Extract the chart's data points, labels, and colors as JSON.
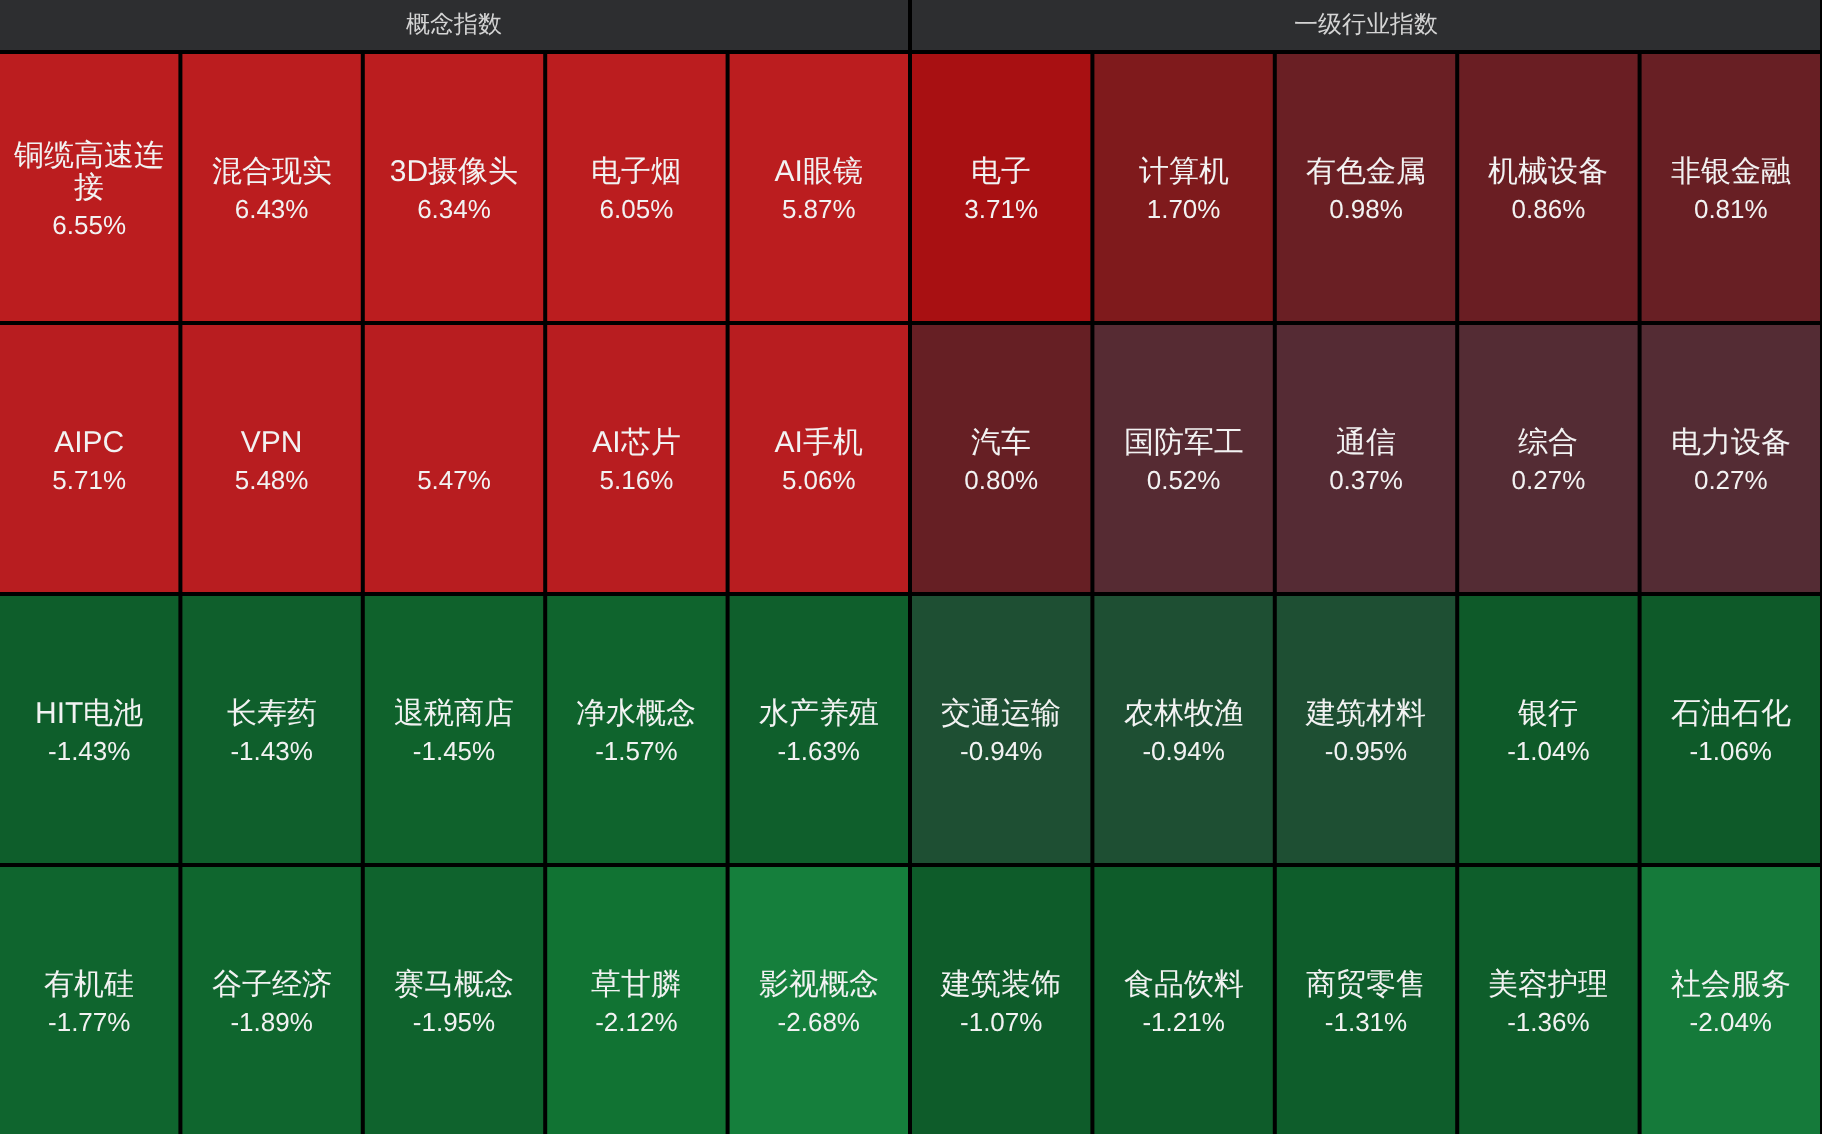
{
  "chart_data": [
    {
      "type": "other",
      "title": "概念指数",
      "categories": [
        "铜缆高速连接",
        "混合现实",
        "3D摄像头",
        "电子烟",
        "AI眼镜",
        "AIPC",
        "VPN",
        null,
        "AI芯片",
        "AI手机",
        "HIT电池",
        "长寿药",
        "退税商店",
        "净水概念",
        "水产养殖",
        "有机硅",
        "谷子经济",
        "赛马概念",
        "草甘膦",
        "影视概念"
      ],
      "values": [
        6.55,
        6.43,
        6.34,
        6.05,
        5.87,
        5.71,
        5.48,
        5.47,
        5.16,
        5.06,
        -1.43,
        -1.43,
        -1.45,
        -1.57,
        -1.63,
        -1.77,
        -1.89,
        -1.95,
        -2.12,
        -2.68
      ],
      "value_labels": [
        "6.55%",
        "6.43%",
        "6.34%",
        "6.05%",
        "5.87%",
        "5.71%",
        "5.48%",
        "5.47%",
        "5.16%",
        "5.06%",
        "-1.43%",
        "-1.43%",
        "-1.45%",
        "-1.57%",
        "-1.63%",
        "-1.77%",
        "-1.89%",
        "-1.95%",
        "-2.12%",
        "-2.68%"
      ],
      "colors": [
        "#bb1d1f",
        "#bb1d1f",
        "#bb1d1f",
        "#bb1d1f",
        "#bb1d1f",
        "#b81d20",
        "#b81d20",
        "#b81d20",
        "#b81d20",
        "#b81d20",
        "#0e5e2b",
        "#0f5f2c",
        "#0f622c",
        "#0f642d",
        "#0f5f2c",
        "#0f652e",
        "#0f662e",
        "#0f632d",
        "#117333",
        "#157f3c"
      ]
    },
    {
      "type": "other",
      "title": "一级行业指数",
      "categories": [
        "电子",
        "计算机",
        "有色金属",
        "机械设备",
        "非银金融",
        "汽车",
        "国防军工",
        "通信",
        "综合",
        "电力设备",
        "交通运输",
        "农林牧渔",
        "建筑材料",
        "银行",
        "石油石化",
        "建筑装饰",
        "食品饮料",
        "商贸零售",
        "美容护理",
        "社会服务"
      ],
      "values": [
        3.71,
        1.7,
        0.98,
        0.86,
        0.81,
        0.8,
        0.52,
        0.37,
        0.27,
        0.27,
        -0.94,
        -0.94,
        -0.95,
        -1.04,
        -1.06,
        -1.07,
        -1.21,
        -1.31,
        -1.36,
        -2.04
      ],
      "value_labels": [
        "3.71%",
        "1.70%",
        "0.98%",
        "0.86%",
        "0.81%",
        "0.80%",
        "0.52%",
        "0.37%",
        "0.27%",
        "0.27%",
        "-0.94%",
        "-0.94%",
        "-0.95%",
        "-1.04%",
        "-1.06%",
        "-1.07%",
        "-1.21%",
        "-1.31%",
        "-1.36%",
        "-2.04%"
      ],
      "colors": [
        "#a81012",
        "#7f1a1c",
        "#6a1f24",
        "#6a1e23",
        "#681f24",
        "#661f24",
        "#562b33",
        "#552b34",
        "#542c34",
        "#542c34",
        "#1e4f33",
        "#1e4f33",
        "#1e4f33",
        "#0e5a29",
        "#0e5a29",
        "#0e5c2a",
        "#0e5c2a",
        "#0e5d2b",
        "#0e5e2b",
        "#157a3a"
      ]
    }
  ]
}
